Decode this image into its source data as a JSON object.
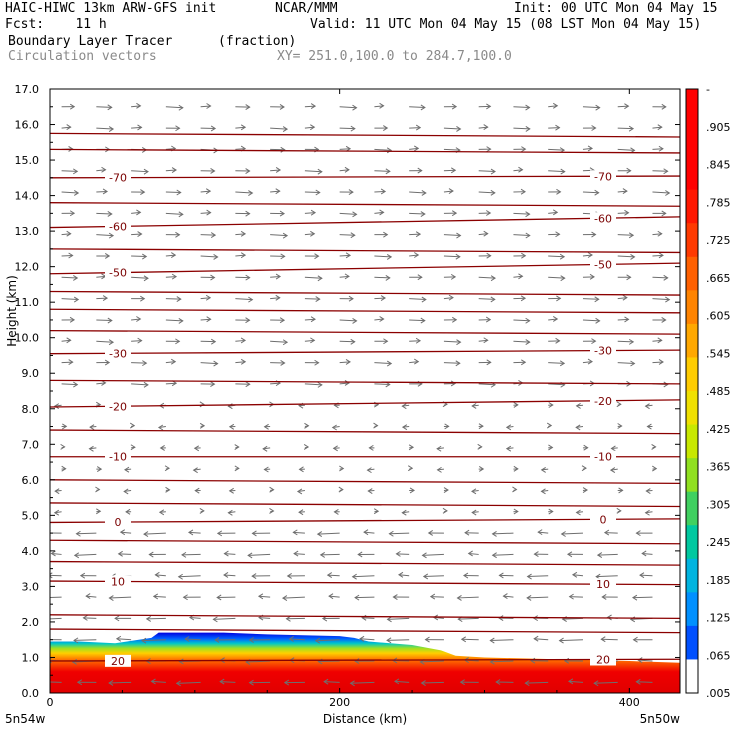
{
  "header": {
    "title_left": "HAIC-HIWC 13km ARW-GFS init",
    "org": "NCAR/MMM",
    "init": "Init: 00 UTC Mon 04 May 15",
    "fcst": "Fcst:    11 h",
    "valid": "Valid: 11 UTC Mon 04 May 15 (08 LST Mon 04 May 15)",
    "field": "Boundary Layer Tracer",
    "field_units": "(fraction)",
    "vectors": "Circulation vectors",
    "xy_range": "XY= 251.0,100.0 to 284.7,100.0"
  },
  "chart_data": {
    "type": "heatmap",
    "xlabel": "Distance (km)",
    "ylabel": "Height (km)",
    "xlim": [
      0,
      435
    ],
    "ylim": [
      0,
      17
    ],
    "x_ticks": [
      "0",
      "200",
      "400"
    ],
    "y_ticks": [
      "0.0",
      "1.0",
      "2.0",
      "3.0",
      "4.0",
      "5.0",
      "6.0",
      "7.0",
      "8.0",
      "9.0",
      "10.0",
      "11.0",
      "12.0",
      "13.0",
      "14.0",
      "15.0",
      "16.0",
      "17.0"
    ],
    "x_endpoint_labels": [
      "5n54w",
      "5n50w"
    ],
    "colorbar": {
      "labels": [
        "-",
        ".905",
        ".845",
        ".785",
        ".725",
        ".665",
        ".605",
        ".545",
        ".485",
        ".425",
        ".365",
        ".305",
        ".245",
        ".185",
        ".125",
        ".065",
        ".005"
      ],
      "range": [
        0.005,
        1.0
      ]
    },
    "tracer_top_km": {
      "x": [
        0,
        20,
        45,
        70,
        75,
        120,
        150,
        200,
        210,
        220,
        250,
        270,
        280,
        300,
        350,
        400,
        435
      ],
      "y": [
        1.45,
        1.45,
        1.4,
        1.55,
        1.7,
        1.7,
        1.65,
        1.6,
        1.55,
        1.45,
        1.35,
        1.2,
        1.05,
        1.0,
        0.95,
        0.9,
        0.85
      ]
    },
    "temperature_contours": [
      {
        "label": "-70",
        "y0": 14.5,
        "y1": 14.55
      },
      {
        "label": "-60",
        "y0": 13.1,
        "y1": 13.4
      },
      {
        "label": "-50",
        "y0": 11.8,
        "y1": 12.1
      },
      {
        "label": "-30",
        "y0": 9.55,
        "y1": 9.65
      },
      {
        "label": "-20",
        "y0": 8.05,
        "y1": 8.25
      },
      {
        "label": "-10",
        "y0": 6.65,
        "y1": 6.65
      },
      {
        "label": "0",
        "y0": 4.8,
        "y1": 4.9
      },
      {
        "label": "10",
        "y0": 3.15,
        "y1": 3.05
      },
      {
        "label": "20",
        "y0": 0.9,
        "y1": 0.95
      }
    ],
    "unlabeled_contour_levels_km": [
      15.75,
      15.3,
      13.8,
      12.5,
      11.3,
      10.8,
      10.2,
      8.8,
      7.4,
      6.0,
      5.35,
      4.3,
      3.7,
      2.2,
      1.8
    ],
    "grid": false
  }
}
